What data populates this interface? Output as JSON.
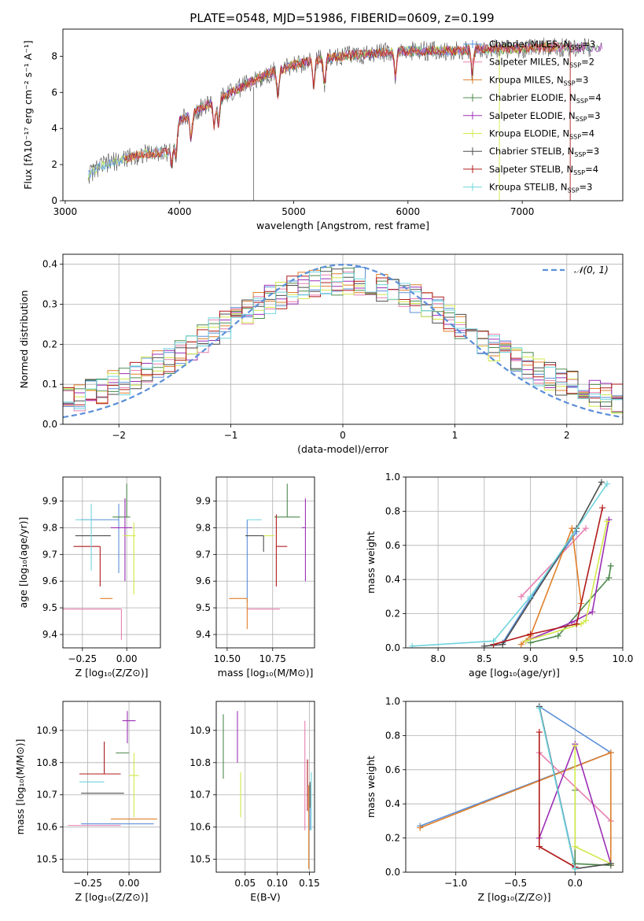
{
  "figure": {
    "title": "PLATE=0548, MJD=51986, FIBERID=0609, z=0.199"
  },
  "series_styles": [
    {
      "name": "Chabrier MILES",
      "nssp": "3",
      "color": "#5b8fd8"
    },
    {
      "name": "Salpeter MILES",
      "nssp": "2",
      "color": "#e87fb0"
    },
    {
      "name": "Kroupa MILES",
      "nssp": "3",
      "color": "#e07f2a"
    },
    {
      "name": "Chabrier ELODIE",
      "nssp": "4",
      "color": "#4d8a4d"
    },
    {
      "name": "Salpeter ELODIE",
      "nssp": "3",
      "color": "#9b2fb5"
    },
    {
      "name": "Kroupa ELODIE",
      "nssp": "4",
      "color": "#d2e84a"
    },
    {
      "name": "Chabrier STELIB",
      "nssp": "3",
      "color": "#4d4d4d"
    },
    {
      "name": "Salpeter STELIB",
      "nssp": "4",
      "color": "#b01a1a"
    },
    {
      "name": "Kroupa STELIB",
      "nssp": "3",
      "color": "#6fd4dc"
    }
  ],
  "chart_data": [
    {
      "id": "spectrum",
      "type": "line",
      "xlabel": "wavelength [Angstrom, rest frame]",
      "ylabel": "Flux [fλ10⁻¹⁷ erg cm⁻² s⁻¹ A⁻¹]",
      "xlim": [
        2980,
        7880
      ],
      "ylim": [
        0,
        9.5
      ],
      "xticks": [
        "3000",
        "4000",
        "5000",
        "6000",
        "7000"
      ],
      "yticks": [
        "0",
        "2",
        "4",
        "6",
        "8"
      ],
      "legend": "top-right",
      "continuum": {
        "x": [
          3200,
          3300,
          3500,
          3700,
          3900,
          4000,
          4200,
          4400,
          4600,
          4800,
          5000,
          5200,
          5400,
          5600,
          5800,
          6000,
          6200,
          6400,
          6600,
          6800,
          7000,
          7200,
          7400,
          7600
        ],
        "y": [
          1.4,
          1.9,
          2.3,
          2.6,
          2.7,
          4.4,
          5.2,
          5.8,
          6.5,
          7.1,
          7.5,
          7.8,
          8.0,
          8.1,
          8.2,
          8.3,
          8.3,
          8.3,
          8.4,
          8.4,
          8.4,
          8.5,
          8.5,
          8.5
        ]
      },
      "absorption_lines": [
        3934,
        3969,
        4102,
        4304,
        4341,
        4861,
        5175,
        5270,
        5890,
        6563
      ]
    },
    {
      "id": "residuals",
      "type": "line",
      "xlabel": "(data-model)/error",
      "ylabel": "Normed distribution",
      "xlim": [
        -2.5,
        2.5
      ],
      "ylim": [
        0,
        0.425
      ],
      "xticks": [
        "−2",
        "−1",
        "0",
        "1",
        "2"
      ],
      "yticks": [
        "0.0",
        "0.1",
        "0.2",
        "0.3",
        "0.4"
      ],
      "legend": "top-right",
      "reference": {
        "name": "𝒩(0, 1)",
        "mean": 0,
        "sigma": 1,
        "color": "#5b8fd8"
      },
      "bin_width": 0.1
    },
    {
      "id": "Z_age",
      "type": "scatter",
      "xlabel": "Z [log₁₀(Z/Z⊙)]",
      "ylabel": "age  [log₁₀(age/yr)]",
      "xlim": [
        -0.36,
        0.19
      ],
      "ylim": [
        9.35,
        9.99
      ],
      "xticks": [
        {
          "v": -0.25,
          "t": "−0.25"
        },
        {
          "v": 0.0,
          "t": "0.00"
        }
      ],
      "yticks": [
        {
          "v": 9.4,
          "t": "9.4"
        },
        {
          "v": 9.5,
          "t": "9.5"
        },
        {
          "v": 9.6,
          "t": "9.6"
        },
        {
          "v": 9.7,
          "t": "9.7"
        },
        {
          "v": 9.8,
          "t": "9.8"
        },
        {
          "v": 9.9,
          "t": "9.9"
        }
      ],
      "points": [
        {
          "s": 0,
          "x": -0.045,
          "y": 9.83,
          "xerr": [
            0.215,
            0.0
          ],
          "yerr": [
            0.2,
            0.06
          ]
        },
        {
          "s": 1,
          "x": -0.03,
          "y": 9.495,
          "xerr": [
            0.33,
            0.0
          ],
          "yerr": [
            0.115,
            0.0
          ]
        },
        {
          "s": 2,
          "x": -0.08,
          "y": 9.535,
          "xerr": [
            0.07,
            0.0
          ],
          "yerr": [
            0.0,
            0.0
          ]
        },
        {
          "s": 3,
          "x": 0.0,
          "y": 9.84,
          "xerr": [
            0.08,
            0.02
          ],
          "yerr": [
            0.0,
            0.125
          ]
        },
        {
          "s": 4,
          "x": -0.01,
          "y": 9.8,
          "xerr": [
            0.08,
            0.04
          ],
          "yerr": [
            0.2,
            0.11
          ]
        },
        {
          "s": 5,
          "x": 0.04,
          "y": 9.77,
          "xerr": [
            0.06,
            0.01
          ],
          "yerr": [
            0.22,
            0.05
          ]
        },
        {
          "s": 6,
          "x": -0.2,
          "y": 9.77,
          "xerr": [
            0.09,
            0.11
          ],
          "yerr": [
            0.0,
            0.0
          ]
        },
        {
          "s": 7,
          "x": -0.15,
          "y": 9.73,
          "xerr": [
            0.15,
            0.0
          ],
          "yerr": [
            0.15,
            0.0
          ]
        },
        {
          "s": 8,
          "x": -0.2,
          "y": 9.83,
          "xerr": [
            0.09,
            0.0
          ],
          "yerr": [
            0.19,
            0.06
          ]
        }
      ]
    },
    {
      "id": "mass_age",
      "type": "scatter",
      "xlabel": "mass [log₁₀(M/M⊙)]",
      "ylabel": "",
      "xlim": [
        10.44,
        10.98
      ],
      "ylim": [
        9.35,
        9.99
      ],
      "xticks": [
        {
          "v": 10.5,
          "t": "10.50"
        },
        {
          "v": 10.75,
          "t": "10.75"
        }
      ],
      "yticks": [
        {
          "v": 9.4,
          "t": "9.4"
        },
        {
          "v": 9.5,
          "t": "9.5"
        },
        {
          "v": 9.6,
          "t": "9.6"
        },
        {
          "v": 9.7,
          "t": "9.7"
        },
        {
          "v": 9.8,
          "t": "9.8"
        },
        {
          "v": 9.9,
          "t": "9.9"
        }
      ],
      "points": [
        {
          "s": 0,
          "x": 10.61,
          "y": 9.83,
          "xerr": [
            0.0,
            0.0
          ],
          "yerr": [
            0.31,
            0.0
          ]
        },
        {
          "s": 1,
          "x": 10.61,
          "y": 9.495,
          "xerr": [
            0.0,
            0.18
          ],
          "yerr": [
            0.0,
            0.0
          ]
        },
        {
          "s": 2,
          "x": 10.61,
          "y": 9.535,
          "xerr": [
            0.1,
            0.0
          ],
          "yerr": [
            0.115,
            0.0
          ]
        },
        {
          "s": 3,
          "x": 10.83,
          "y": 9.84,
          "xerr": [
            0.07,
            0.07
          ],
          "yerr": [
            0.0,
            0.125
          ]
        },
        {
          "s": 4,
          "x": 10.93,
          "y": 9.8,
          "xerr": [
            0.02,
            0.0
          ],
          "yerr": [
            0.2,
            0.11
          ]
        },
        {
          "s": 5,
          "x": 10.76,
          "y": 9.77,
          "xerr": [
            0.06,
            0.0
          ],
          "yerr": [
            0.0,
            0.0
          ]
        },
        {
          "s": 6,
          "x": 10.7,
          "y": 9.77,
          "xerr": [
            0.1,
            0.0
          ],
          "yerr": [
            0.06,
            0.0
          ]
        },
        {
          "s": 7,
          "x": 10.77,
          "y": 9.73,
          "xerr": [
            0.0,
            0.06
          ],
          "yerr": [
            0.15,
            0.12
          ]
        },
        {
          "s": 8,
          "x": 10.69,
          "y": 9.83,
          "xerr": [
            0.08,
            0.0
          ],
          "yerr": [
            0.0,
            0.0
          ]
        }
      ]
    },
    {
      "id": "age_weight",
      "type": "line",
      "xlabel": "age  [log₁₀(age/yr)]",
      "ylabel": "mass weight",
      "xlim": [
        7.65,
        10.0
      ],
      "ylim": [
        0,
        1
      ],
      "xticks": [
        {
          "v": 8.0,
          "t": "8.0"
        },
        {
          "v": 8.5,
          "t": "8.5"
        },
        {
          "v": 9.0,
          "t": "9.0"
        },
        {
          "v": 9.5,
          "t": "9.5"
        },
        {
          "v": 10.0,
          "t": "10.0"
        }
      ],
      "yticks": [
        {
          "v": 0,
          "t": "0.0"
        },
        {
          "v": 0.2,
          "t": "0.2"
        },
        {
          "v": 0.4,
          "t": "0.4"
        },
        {
          "v": 0.6,
          "t": "0.6"
        },
        {
          "v": 0.8,
          "t": "0.8"
        },
        {
          "v": 1.0,
          "t": "1.0"
        }
      ],
      "series": [
        {
          "s": 0,
          "x": [
            8.7,
            9.0,
            9.5
          ],
          "y": [
            0.03,
            0.29,
            0.68
          ]
        },
        {
          "s": 1,
          "x": [
            8.9,
            9.6
          ],
          "y": [
            0.3,
            0.7
          ]
        },
        {
          "s": 2,
          "x": [
            8.9,
            9.0,
            9.45,
            9.55
          ],
          "y": [
            0.02,
            0.07,
            0.7,
            0.26
          ]
        },
        {
          "s": 3,
          "x": [
            9.0,
            9.3,
            9.85,
            9.87
          ],
          "y": [
            0.03,
            0.07,
            0.41,
            0.48
          ]
        },
        {
          "s": 4,
          "x": [
            8.95,
            9.45,
            9.67,
            9.85
          ],
          "y": [
            0.04,
            0.15,
            0.21,
            0.75
          ]
        },
        {
          "s": 5,
          "x": [
            8.95,
            9.55,
            9.6,
            9.83
          ],
          "y": [
            0.04,
            0.14,
            0.16,
            0.74
          ]
        },
        {
          "s": 6,
          "x": [
            8.5,
            8.7,
            9.5,
            9.77
          ],
          "y": [
            0.01,
            0.02,
            0.7,
            0.97
          ]
        },
        {
          "s": 7,
          "x": [
            8.6,
            9.0,
            9.5,
            9.78
          ],
          "y": [
            0.02,
            0.08,
            0.14,
            0.82
          ]
        },
        {
          "s": 8,
          "x": [
            7.72,
            8.6,
            9.0,
            9.83
          ],
          "y": [
            0.01,
            0.04,
            0.3,
            0.96
          ]
        }
      ]
    },
    {
      "id": "Z_mass",
      "type": "scatter",
      "xlabel": "Z [log₁₀(Z/Z⊙)]",
      "ylabel": "mass [log₁₀(M/M⊙)]",
      "xlim": [
        -0.4,
        0.19
      ],
      "ylim": [
        10.46,
        10.99
      ],
      "xticks": [
        {
          "v": -0.25,
          "t": "−0.25"
        },
        {
          "v": 0.0,
          "t": "0.00"
        }
      ],
      "yticks": [
        {
          "v": 10.5,
          "t": "10.5"
        },
        {
          "v": 10.6,
          "t": "10.6"
        },
        {
          "v": 10.7,
          "t": "10.7"
        },
        {
          "v": 10.8,
          "t": "10.8"
        },
        {
          "v": 10.9,
          "t": "10.9"
        }
      ],
      "points": [
        {
          "s": 0,
          "x": -0.05,
          "y": 10.61,
          "xerr": [
            0.24,
            0.2
          ],
          "yerr": [
            0.0,
            0.0
          ]
        },
        {
          "s": 1,
          "x": -0.05,
          "y": 10.605,
          "xerr": [
            0.32,
            0.0
          ],
          "yerr": [
            0.0,
            0.0
          ]
        },
        {
          "s": 2,
          "x": 0.0,
          "y": 10.625,
          "xerr": [
            0.11,
            0.17
          ],
          "yerr": [
            0.0,
            0.0
          ]
        },
        {
          "s": 3,
          "x": -0.03,
          "y": 10.83,
          "xerr": [
            0.05,
            0.03
          ],
          "yerr": [
            0.0,
            0.0
          ]
        },
        {
          "s": 4,
          "x": -0.01,
          "y": 10.93,
          "xerr": [
            0.03,
            0.05
          ],
          "yerr": [
            0.07,
            0.03
          ]
        },
        {
          "s": 5,
          "x": 0.03,
          "y": 10.76,
          "xerr": [
            0.03,
            0.03
          ],
          "yerr": [
            0.13,
            0.07
          ]
        },
        {
          "s": 6,
          "x": -0.15,
          "y": 10.705,
          "xerr": [
            0.14,
            0.12
          ],
          "yerr": [
            0.0,
            0.0
          ]
        },
        {
          "s": 7,
          "x": -0.15,
          "y": 10.765,
          "xerr": [
            0.15,
            0.1
          ],
          "yerr": [
            0.0,
            0.1
          ]
        },
        {
          "s": 8,
          "x": -0.15,
          "y": 10.74,
          "xerr": [
            0.15,
            0.0
          ],
          "yerr": [
            0.0,
            0.0
          ]
        }
      ]
    },
    {
      "id": "EBV_mass",
      "type": "scatter",
      "xlabel": "E(B-V)",
      "ylabel": "",
      "xlim": [
        0.005,
        0.158
      ],
      "ylim": [
        10.46,
        10.99
      ],
      "xticks": [
        {
          "v": 0.05,
          "t": "0.05"
        },
        {
          "v": 0.1,
          "t": "0.10"
        },
        {
          "v": 0.15,
          "t": "0.15"
        }
      ],
      "yticks": [
        {
          "v": 10.5,
          "t": "10.5"
        },
        {
          "v": 10.6,
          "t": "10.6"
        },
        {
          "v": 10.7,
          "t": "10.7"
        },
        {
          "v": 10.8,
          "t": "10.8"
        },
        {
          "v": 10.9,
          "t": "10.9"
        }
      ],
      "points": [
        {
          "s": 0,
          "x": 0.151,
          "y": 10.66,
          "xerr": [
            0,
            0
          ],
          "yerr": [
            0.07,
            0.07
          ]
        },
        {
          "s": 1,
          "x": 0.143,
          "y": 10.76,
          "xerr": [
            0,
            0
          ],
          "yerr": [
            0.17,
            0.17
          ]
        },
        {
          "s": 2,
          "x": 0.149,
          "y": 10.6,
          "xerr": [
            0,
            0
          ],
          "yerr": [
            0.13,
            0.13
          ]
        },
        {
          "s": 3,
          "x": 0.016,
          "y": 10.85,
          "xerr": [
            0,
            0
          ],
          "yerr": [
            0.1,
            0.1
          ]
        },
        {
          "s": 4,
          "x": 0.038,
          "y": 10.88,
          "xerr": [
            0,
            0
          ],
          "yerr": [
            0.08,
            0.08
          ]
        },
        {
          "s": 5,
          "x": 0.043,
          "y": 10.7,
          "xerr": [
            0,
            0
          ],
          "yerr": [
            0.07,
            0.07
          ]
        },
        {
          "s": 6,
          "x": 0.151,
          "y": 10.7,
          "xerr": [
            0,
            0
          ],
          "yerr": [
            0.04,
            0.04
          ]
        },
        {
          "s": 7,
          "x": 0.147,
          "y": 10.73,
          "xerr": [
            0,
            0
          ],
          "yerr": [
            0.08,
            0.08
          ]
        },
        {
          "s": 8,
          "x": 0.153,
          "y": 10.68,
          "xerr": [
            0,
            0
          ],
          "yerr": [
            0.09,
            0.09
          ]
        }
      ]
    },
    {
      "id": "Z_weight",
      "type": "line",
      "xlabel": "Z [log₁₀(Z/Z⊙)]",
      "ylabel": "mass weight",
      "xlim": [
        -1.42,
        0.4
      ],
      "ylim": [
        0,
        1
      ],
      "xticks": [
        {
          "v": -1.0,
          "t": "−1.0"
        },
        {
          "v": -0.5,
          "t": "−0.5"
        },
        {
          "v": 0.0,
          "t": "0.0"
        }
      ],
      "yticks": [
        {
          "v": 0,
          "t": "0.0"
        },
        {
          "v": 0.2,
          "t": "0.2"
        },
        {
          "v": 0.4,
          "t": "0.4"
        },
        {
          "v": 0.6,
          "t": "0.6"
        },
        {
          "v": 0.8,
          "t": "0.8"
        },
        {
          "v": 1.0,
          "t": "1.0"
        }
      ],
      "series": [
        {
          "s": 0,
          "x": [
            -1.3,
            0.3,
            -0.3,
            0.0
          ],
          "y": [
            0.27,
            0.7,
            0.97,
            0.03
          ]
        },
        {
          "s": 1,
          "x": [
            -0.3,
            0.3
          ],
          "y": [
            0.7,
            0.3
          ]
        },
        {
          "s": 2,
          "x": [
            -1.3,
            0.3,
            0.3
          ],
          "y": [
            0.26,
            0.7,
            0.04
          ]
        },
        {
          "s": 3,
          "x": [
            0.0,
            0.0,
            0.3
          ],
          "y": [
            0.48,
            0.05,
            0.04
          ]
        },
        {
          "s": 4,
          "x": [
            -0.3,
            0.0,
            0.3
          ],
          "y": [
            0.2,
            0.75,
            0.05
          ]
        },
        {
          "s": 5,
          "x": [
            0.0,
            0.0,
            0.3
          ],
          "y": [
            0.74,
            0.15,
            0.05
          ]
        },
        {
          "s": 6,
          "x": [
            -0.3,
            0.0,
            0.3
          ],
          "y": [
            0.97,
            0.02,
            0.05
          ]
        },
        {
          "s": 7,
          "x": [
            -0.3,
            -0.3,
            0.0
          ],
          "y": [
            0.82,
            0.15,
            0.03
          ]
        },
        {
          "s": 8,
          "x": [
            -0.3,
            0.0
          ],
          "y": [
            0.96,
            0.02
          ]
        }
      ]
    }
  ]
}
